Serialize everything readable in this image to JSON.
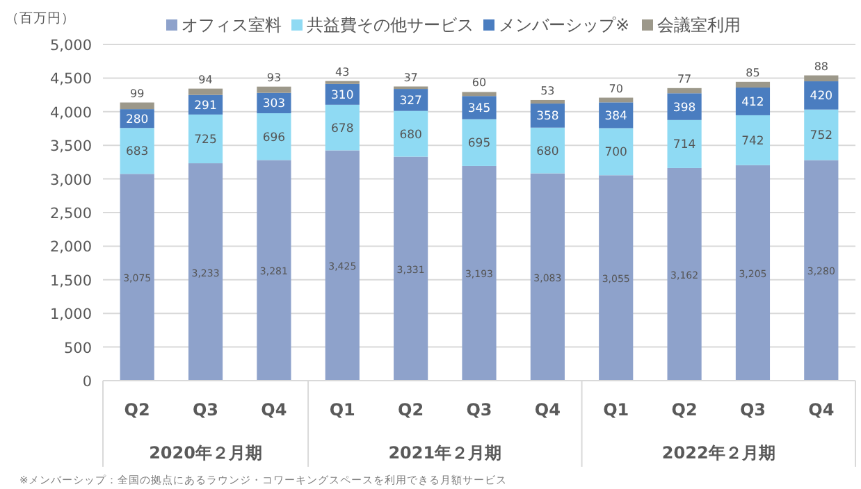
{
  "chart_data": {
    "type": "bar",
    "stacked": true,
    "ylabel": "（百万円）",
    "categories": [
      "Q2",
      "Q3",
      "Q4",
      "Q1",
      "Q2",
      "Q3",
      "Q4",
      "Q1",
      "Q2",
      "Q3",
      "Q4"
    ],
    "series": [
      {
        "name": "オフィス室料",
        "color": "#8ea2cb",
        "values": [
          3075,
          3233,
          3281,
          3425,
          3331,
          3193,
          3083,
          3055,
          3162,
          3205,
          3280
        ],
        "value_labels": [
          "3,075",
          "3,233",
          "3,281",
          "3,425",
          "3,331",
          "3,193",
          "3,083",
          "3,055",
          "3,162",
          "3,205",
          "3,280"
        ]
      },
      {
        "name": "共益費その他サービス",
        "color": "#8fdaf3",
        "values": [
          683,
          725,
          696,
          678,
          680,
          695,
          680,
          700,
          714,
          742,
          752
        ]
      },
      {
        "name": "メンバーシップ※",
        "color": "#4a7dc0",
        "values": [
          280,
          291,
          303,
          310,
          327,
          345,
          358,
          384,
          398,
          412,
          420
        ]
      },
      {
        "name": "会議室利用",
        "color": "#9c988a",
        "values": [
          99,
          94,
          93,
          43,
          37,
          60,
          53,
          70,
          77,
          85,
          88
        ]
      }
    ],
    "ylim": [
      0,
      5000
    ],
    "yticks": [
      {
        "value": 0,
        "label": "0"
      },
      {
        "value": 500,
        "label": "500"
      },
      {
        "value": 1000,
        "label": "1,000"
      },
      {
        "value": 1500,
        "label": "1,500"
      },
      {
        "value": 2000,
        "label": "2,000"
      },
      {
        "value": 2500,
        "label": "2,500"
      },
      {
        "value": 3000,
        "label": "3,000"
      },
      {
        "value": 3500,
        "label": "3,500"
      },
      {
        "value": 4000,
        "label": "4,000"
      },
      {
        "value": 4500,
        "label": "4,500"
      },
      {
        "value": 5000,
        "label": "5,000"
      }
    ],
    "grid": "y",
    "legend": "top",
    "data_labels": true,
    "annotations": [
      "2020年２月期",
      "2021年２月期",
      "2022年２月期",
      "※メンバーシップ：全国の拠点にあるラウンジ・コワーキングスペースを利用できる月額サービス"
    ]
  }
}
